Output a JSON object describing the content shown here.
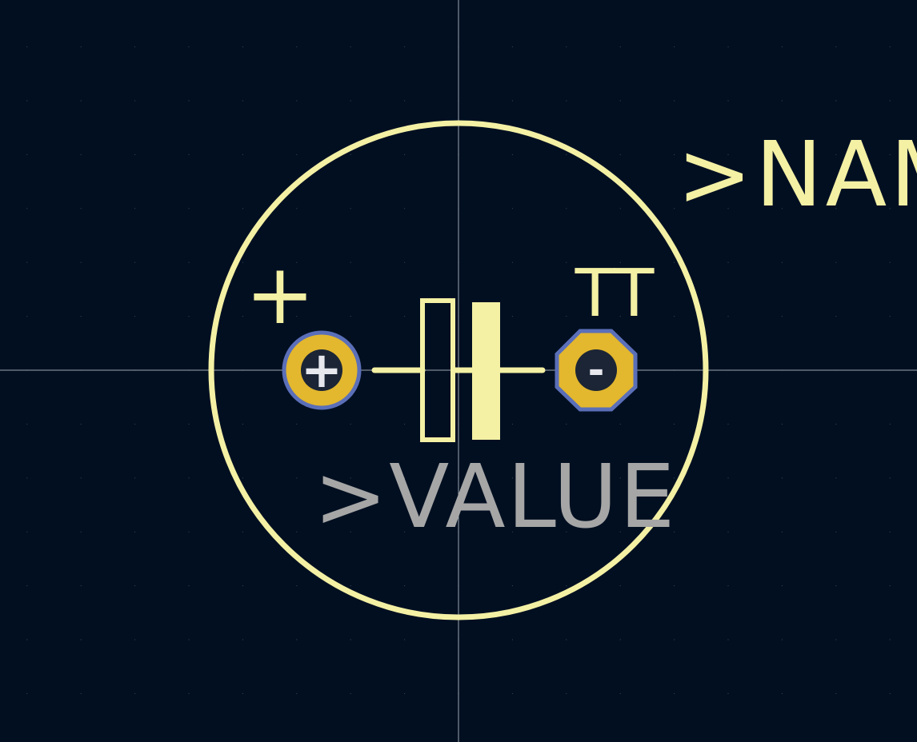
{
  "viewer": {
    "name_label": ">NAME",
    "value_label": ">VALUE",
    "polarity_plus": "+",
    "part_marking": "TT",
    "pad1_symbol": "+",
    "pad2_symbol": "-"
  },
  "colors": {
    "background": "#010f21",
    "grid_dot": "#3a4a5c",
    "crosshair": "#c8ccd4",
    "silkscreen": "#f4f0a4",
    "value_text": "#a6a6a6",
    "pad_copper": "#e3b72e",
    "pad_outline": "#5b6fb8",
    "pad_drill": "#1b2535",
    "pad_symbol": "#e6e8ee"
  },
  "icons": {
    "pad1": "round-pad-icon",
    "pad2": "octagon-pad-icon",
    "capacitor": "polarized-capacitor-symbol"
  }
}
